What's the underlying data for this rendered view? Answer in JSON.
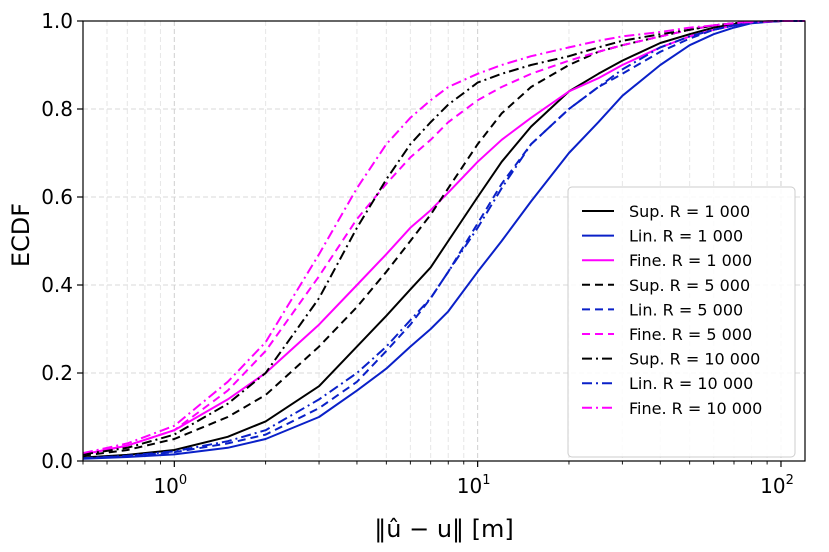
{
  "chart_data": {
    "type": "line",
    "title": "",
    "xlabel": "‖û − u‖ [m]",
    "ylabel": "ECDF",
    "xscale": "log",
    "xlim": [
      0.5,
      120
    ],
    "ylim": [
      0.0,
      1.0
    ],
    "grid": true,
    "legend_position": "lower-right",
    "x_ticks": [
      {
        "value": 1,
        "base": "10",
        "exp": "0"
      },
      {
        "value": 10,
        "base": "10",
        "exp": "1"
      },
      {
        "value": 100,
        "base": "10",
        "exp": "2"
      }
    ],
    "y_ticks": [
      {
        "value": 0.0,
        "label": "0.0"
      },
      {
        "value": 0.2,
        "label": "0.2"
      },
      {
        "value": 0.4,
        "label": "0.4"
      },
      {
        "value": 0.6,
        "label": "0.6"
      },
      {
        "value": 0.8,
        "label": "0.8"
      },
      {
        "value": 1.0,
        "label": "1.0"
      }
    ],
    "series": [
      {
        "name": "Sup. R = 1 000",
        "color": "#000000",
        "dash": "solid",
        "x": [
          0.5,
          0.7,
          1,
          1.5,
          2,
          3,
          4,
          5,
          6,
          7,
          8,
          10,
          12,
          15,
          20,
          25,
          30,
          40,
          50,
          60,
          70,
          80,
          100,
          120
        ],
        "y": [
          0.008,
          0.014,
          0.025,
          0.055,
          0.09,
          0.17,
          0.26,
          0.33,
          0.39,
          0.44,
          0.5,
          0.6,
          0.68,
          0.76,
          0.84,
          0.88,
          0.91,
          0.95,
          0.97,
          0.985,
          0.993,
          0.997,
          1.0,
          1.0
        ]
      },
      {
        "name": "Lin. R = 1 000",
        "color": "#0a20c8",
        "dash": "solid",
        "x": [
          0.5,
          0.7,
          1,
          1.5,
          2,
          3,
          4,
          5,
          6,
          7,
          8,
          10,
          12,
          15,
          20,
          25,
          30,
          40,
          50,
          60,
          70,
          80,
          100,
          120
        ],
        "y": [
          0.005,
          0.009,
          0.015,
          0.03,
          0.05,
          0.1,
          0.16,
          0.21,
          0.26,
          0.3,
          0.34,
          0.43,
          0.5,
          0.59,
          0.7,
          0.77,
          0.83,
          0.9,
          0.945,
          0.97,
          0.985,
          0.995,
          1.0,
          1.0
        ]
      },
      {
        "name": "Fine. R = 1 000",
        "color": "#ff00ff",
        "dash": "solid",
        "x": [
          0.5,
          0.7,
          1,
          1.5,
          2,
          3,
          4,
          5,
          6,
          7,
          8,
          10,
          12,
          15,
          20,
          25,
          30,
          40,
          50,
          60,
          70,
          80,
          100,
          120
        ],
        "y": [
          0.015,
          0.035,
          0.07,
          0.14,
          0.2,
          0.31,
          0.4,
          0.47,
          0.53,
          0.57,
          0.61,
          0.68,
          0.73,
          0.78,
          0.84,
          0.87,
          0.9,
          0.94,
          0.965,
          0.98,
          0.99,
          0.997,
          1.0,
          1.0
        ]
      },
      {
        "name": "Sup. R = 5 000",
        "color": "#000000",
        "dash": "dashed",
        "x": [
          0.5,
          0.7,
          1,
          1.5,
          2,
          3,
          4,
          5,
          6,
          7,
          8,
          10,
          12,
          15,
          20,
          25,
          30,
          40,
          50,
          60,
          70,
          80,
          100,
          120
        ],
        "y": [
          0.012,
          0.025,
          0.05,
          0.1,
          0.15,
          0.26,
          0.35,
          0.43,
          0.5,
          0.56,
          0.62,
          0.72,
          0.79,
          0.85,
          0.9,
          0.93,
          0.945,
          0.965,
          0.98,
          0.99,
          0.995,
          0.998,
          1.0,
          1.0
        ]
      },
      {
        "name": "Lin. R = 5 000",
        "color": "#0a20c8",
        "dash": "dashed",
        "x": [
          0.5,
          0.7,
          1,
          1.5,
          2,
          3,
          4,
          5,
          6,
          7,
          8,
          10,
          12,
          15,
          20,
          25,
          30,
          40,
          50,
          60,
          70,
          80,
          100,
          120
        ],
        "y": [
          0.006,
          0.011,
          0.02,
          0.04,
          0.06,
          0.12,
          0.18,
          0.25,
          0.31,
          0.37,
          0.43,
          0.54,
          0.63,
          0.72,
          0.8,
          0.85,
          0.88,
          0.93,
          0.96,
          0.98,
          0.99,
          0.996,
          1.0,
          1.0
        ]
      },
      {
        "name": "Fine. R = 5 000",
        "color": "#ff00ff",
        "dash": "dashed",
        "x": [
          0.5,
          0.7,
          1,
          1.5,
          2,
          3,
          4,
          5,
          6,
          7,
          8,
          10,
          12,
          15,
          20,
          25,
          30,
          40,
          50,
          60,
          70,
          80,
          100,
          120
        ],
        "y": [
          0.015,
          0.035,
          0.07,
          0.16,
          0.25,
          0.42,
          0.55,
          0.63,
          0.69,
          0.73,
          0.77,
          0.82,
          0.85,
          0.88,
          0.91,
          0.93,
          0.945,
          0.965,
          0.98,
          0.99,
          0.995,
          0.998,
          1.0,
          1.0
        ]
      },
      {
        "name": "Sup. R = 10 000",
        "color": "#000000",
        "dash": "dashdot",
        "x": [
          0.5,
          0.7,
          1,
          1.5,
          2,
          3,
          4,
          5,
          6,
          7,
          8,
          10,
          12,
          15,
          20,
          25,
          30,
          40,
          50,
          60,
          70,
          80,
          100,
          120
        ],
        "y": [
          0.015,
          0.03,
          0.06,
          0.13,
          0.2,
          0.37,
          0.53,
          0.64,
          0.72,
          0.77,
          0.81,
          0.86,
          0.88,
          0.9,
          0.92,
          0.94,
          0.955,
          0.97,
          0.98,
          0.99,
          0.995,
          0.998,
          1.0,
          1.0
        ]
      },
      {
        "name": "Lin. R = 10 000",
        "color": "#0a20c8",
        "dash": "dashdot",
        "x": [
          0.5,
          0.7,
          1,
          1.5,
          2,
          3,
          4,
          5,
          6,
          7,
          8,
          10,
          12,
          15,
          20,
          25,
          30,
          40,
          50,
          60,
          70,
          80,
          100,
          120
        ],
        "y": [
          0.006,
          0.012,
          0.022,
          0.045,
          0.07,
          0.14,
          0.2,
          0.26,
          0.32,
          0.37,
          0.43,
          0.53,
          0.62,
          0.72,
          0.8,
          0.85,
          0.89,
          0.94,
          0.965,
          0.98,
          0.99,
          0.996,
          1.0,
          1.0
        ]
      },
      {
        "name": "Fine. R = 10 000",
        "color": "#ff00ff",
        "dash": "dashdot",
        "x": [
          0.5,
          0.7,
          1,
          1.5,
          2,
          3,
          4,
          5,
          6,
          7,
          8,
          10,
          12,
          15,
          20,
          25,
          30,
          40,
          50,
          60,
          70,
          80,
          100,
          120
        ],
        "y": [
          0.018,
          0.04,
          0.08,
          0.18,
          0.27,
          0.47,
          0.62,
          0.72,
          0.78,
          0.82,
          0.85,
          0.88,
          0.9,
          0.92,
          0.94,
          0.955,
          0.965,
          0.975,
          0.985,
          0.99,
          0.995,
          0.998,
          1.0,
          1.0
        ]
      }
    ]
  }
}
